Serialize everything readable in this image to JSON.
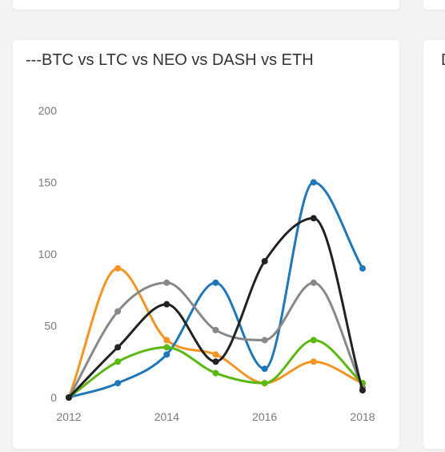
{
  "card": {
    "title": "---BTC vs LTC vs NEO vs DASH vs ETH",
    "side_title": "D"
  },
  "chart_data": {
    "type": "line",
    "title": "---BTC vs LTC vs NEO vs DASH vs ETH",
    "xlabel": "",
    "ylabel": "",
    "x": [
      2012,
      2013,
      2014,
      2015,
      2016,
      2017,
      2018
    ],
    "x_tick_labels": [
      "2012",
      "2014",
      "2016",
      "2018"
    ],
    "y_tick_labels": [
      "0",
      "50",
      "100",
      "150",
      "200"
    ],
    "xlim": [
      2012,
      2018
    ],
    "ylim": [
      0,
      200
    ],
    "grid": false,
    "legend": false,
    "series": [
      {
        "color": "#f39423",
        "values": [
          0,
          90,
          40,
          30,
          10,
          25,
          10
        ]
      },
      {
        "color": "#1f77b9",
        "values": [
          0,
          10,
          30,
          80,
          20,
          150,
          90
        ]
      },
      {
        "color": "#888888",
        "values": [
          0,
          60,
          80,
          47,
          40,
          80,
          7
        ]
      },
      {
        "color": "#5cb812",
        "values": [
          0,
          25,
          35,
          17,
          10,
          40,
          10
        ]
      },
      {
        "color": "#222222",
        "values": [
          0,
          35,
          65,
          25,
          95,
          125,
          5
        ]
      }
    ]
  }
}
